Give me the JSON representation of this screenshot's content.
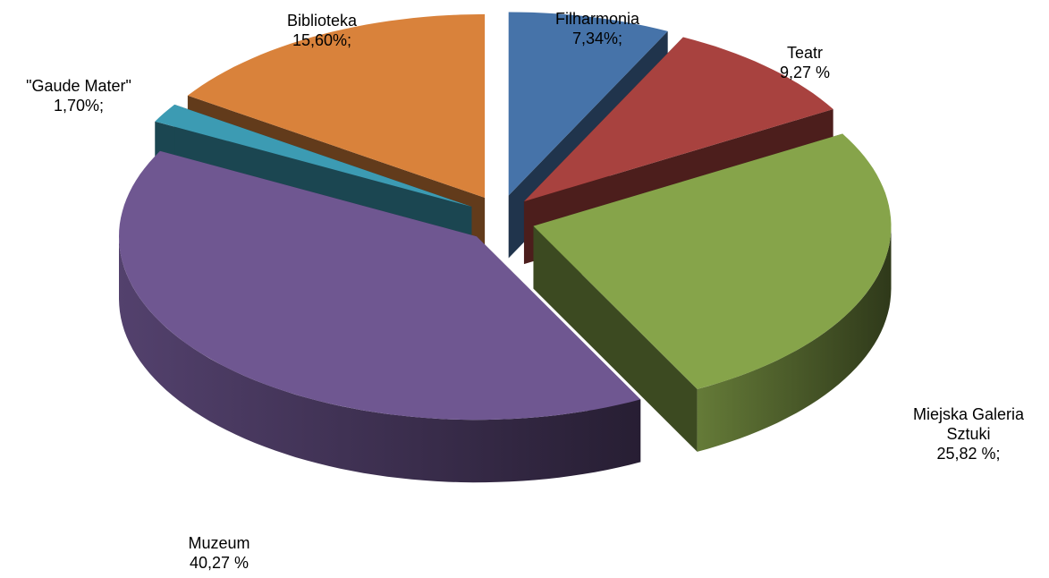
{
  "chart_data": {
    "type": "pie3d",
    "categories": [
      "Filharmonia",
      "Teatr",
      "Miejska Galeria Sztuki",
      "Muzeum",
      "\"Gaude Mater\"",
      "Biblioteka"
    ],
    "values": [
      7.34,
      9.27,
      25.82,
      40.27,
      1.7,
      15.6
    ],
    "value_labels": [
      "7,34%;",
      "9,27 %",
      "25,82 %;",
      "40,27 %",
      "1,70%;",
      "15,60%;"
    ],
    "colors": [
      "#4673a9",
      "#a8423f",
      "#86a44a",
      "#6f5791",
      "#3c9bb3",
      "#d9823b"
    ]
  }
}
